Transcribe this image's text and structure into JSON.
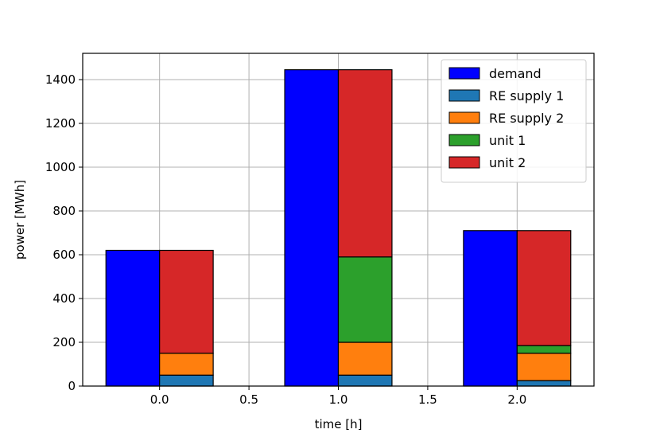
{
  "chart_data": {
    "type": "bar",
    "xlabel": "time [h]",
    "ylabel": "power [MWh]",
    "xlim": [
      -0.43,
      2.43
    ],
    "ylim": [
      0,
      1520
    ],
    "xticks": [
      0.0,
      0.5,
      1.0,
      1.5,
      2.0
    ],
    "xtick_labels": [
      "0.0",
      "0.5",
      "1.0",
      "1.5",
      "2.0"
    ],
    "yticks": [
      0,
      200,
      400,
      600,
      800,
      1000,
      1200,
      1400
    ],
    "ytick_labels": [
      "0",
      "200",
      "400",
      "600",
      "800",
      "1000",
      "1200",
      "1400"
    ],
    "grid": true,
    "legend_position": "top-right",
    "bar_width": 0.3,
    "time": [
      0,
      1,
      2
    ],
    "demand": {
      "name": "demand",
      "color": "#0000ff",
      "values": [
        620,
        1445,
        710
      ]
    },
    "supply_stack": [
      {
        "name": "RE supply 1",
        "color": "#1f77b4",
        "values": [
          50,
          50,
          25
        ]
      },
      {
        "name": "RE supply 2",
        "color": "#ff7f0e",
        "values": [
          100,
          150,
          125
        ]
      },
      {
        "name": "unit 1",
        "color": "#2ca02c",
        "values": [
          0,
          390,
          35
        ]
      },
      {
        "name": "unit 2",
        "color": "#d62728",
        "values": [
          470,
          855,
          525
        ]
      }
    ]
  }
}
